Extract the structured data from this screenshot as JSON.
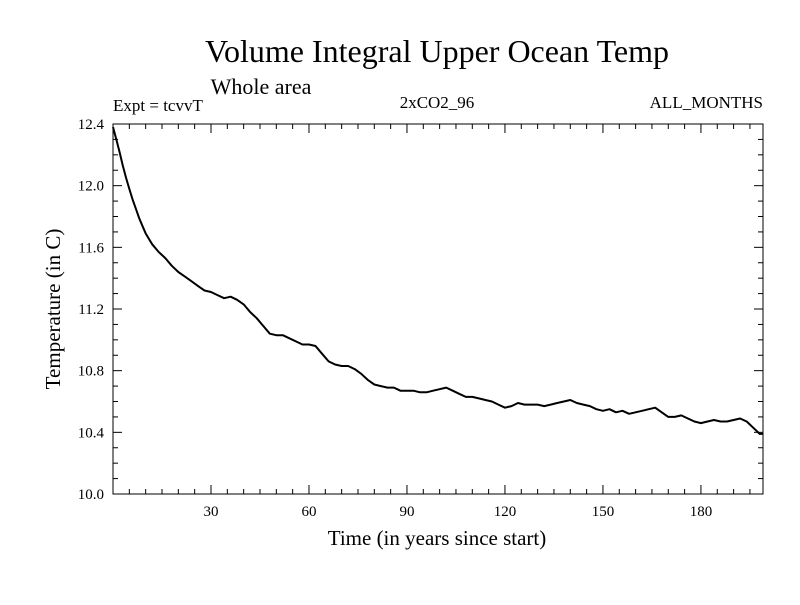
{
  "chart_data": {
    "type": "line",
    "title": "Volume Integral Upper Ocean Temp",
    "subtitle": "Whole area",
    "annotations": {
      "experiment": "Expt = tcvvT",
      "run": "2xCO2_96",
      "season": "ALL_MONTHS"
    },
    "xlabel": "Time (in years since start)",
    "ylabel": "Temperature (in C)",
    "xlim": [
      0,
      199
    ],
    "ylim": [
      10.0,
      12.4
    ],
    "xticks": [
      30,
      60,
      90,
      120,
      150,
      180
    ],
    "xtick_labels": [
      "30",
      "60",
      "90",
      "120",
      "150",
      "180"
    ],
    "yticks": [
      10.0,
      10.4,
      10.8,
      11.2,
      11.6,
      12.0,
      12.4
    ],
    "ytick_labels": [
      "10.0",
      "10.4",
      "10.8",
      "11.2",
      "11.6",
      "12.0",
      "12.4"
    ],
    "grid": false,
    "legend": "none",
    "line_color": "#000000",
    "series": [
      {
        "x": [
          0,
          1,
          2,
          3,
          4,
          5,
          6,
          7,
          8,
          9,
          10,
          12,
          14,
          16,
          18,
          20,
          22,
          24,
          26,
          28,
          30,
          32,
          34,
          36,
          38,
          40,
          42,
          44,
          46,
          48,
          50,
          52,
          54,
          56,
          58,
          60,
          62,
          64,
          66,
          68,
          70,
          72,
          74,
          76,
          78,
          80,
          82,
          84,
          86,
          88,
          90,
          92,
          94,
          96,
          98,
          100,
          102,
          104,
          106,
          108,
          110,
          112,
          114,
          116,
          118,
          120,
          122,
          124,
          126,
          128,
          130,
          132,
          134,
          136,
          138,
          140,
          142,
          144,
          146,
          148,
          150,
          152,
          154,
          156,
          158,
          160,
          162,
          164,
          166,
          168,
          170,
          172,
          174,
          176,
          178,
          180,
          182,
          184,
          186,
          188,
          190,
          192,
          194,
          196,
          198,
          199
        ],
        "y": [
          12.38,
          12.3,
          12.22,
          12.13,
          12.05,
          11.98,
          11.91,
          11.85,
          11.79,
          11.74,
          11.69,
          11.62,
          11.57,
          11.53,
          11.48,
          11.44,
          11.41,
          11.38,
          11.35,
          11.32,
          11.31,
          11.29,
          11.27,
          11.28,
          11.26,
          11.23,
          11.18,
          11.14,
          11.09,
          11.04,
          11.03,
          11.03,
          11.01,
          10.99,
          10.97,
          10.97,
          10.96,
          10.91,
          10.86,
          10.84,
          10.83,
          10.83,
          10.81,
          10.78,
          10.74,
          10.71,
          10.7,
          10.69,
          10.69,
          10.67,
          10.67,
          10.67,
          10.66,
          10.66,
          10.67,
          10.68,
          10.69,
          10.67,
          10.65,
          10.63,
          10.63,
          10.62,
          10.61,
          10.6,
          10.58,
          10.56,
          10.57,
          10.59,
          10.58,
          10.58,
          10.58,
          10.57,
          10.58,
          10.59,
          10.6,
          10.61,
          10.59,
          10.58,
          10.57,
          10.55,
          10.54,
          10.55,
          10.53,
          10.54,
          10.52,
          10.53,
          10.54,
          10.55,
          10.56,
          10.53,
          10.5,
          10.5,
          10.51,
          10.49,
          10.47,
          10.46,
          10.47,
          10.48,
          10.47,
          10.47,
          10.48,
          10.49,
          10.47,
          10.43,
          10.39,
          10.39
        ]
      }
    ]
  }
}
